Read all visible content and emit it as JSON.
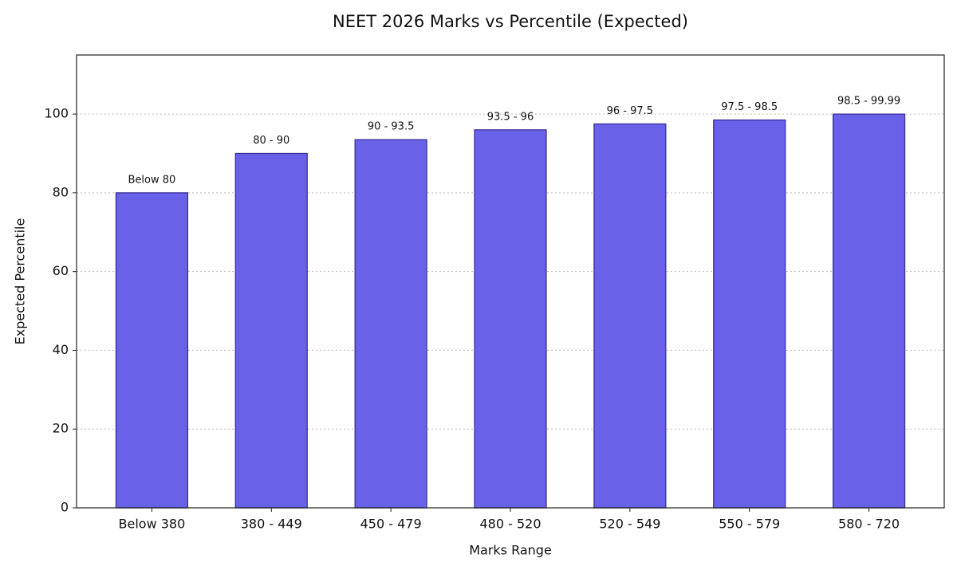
{
  "chart_data": {
    "type": "bar",
    "title": "NEET 2026 Marks vs Percentile (Expected)",
    "x_label": "Marks Range",
    "y_label": "Expected Percentile",
    "categories": [
      "Below 380",
      "380 - 449",
      "450 - 479",
      "480 - 520",
      "520 - 549",
      "550 - 579",
      "580 - 720"
    ],
    "values": [
      80,
      90,
      93.5,
      96,
      97.5,
      98.5,
      99.99
    ],
    "value_labels": [
      "Below 80",
      "80 - 90",
      "90 - 93.5",
      "93.5 - 96",
      "96 - 97.5",
      "97.5 - 98.5",
      "98.5 - 99.99"
    ],
    "color": "#6961e8",
    "edge_color": "#3b2f9e",
    "ylim": [
      0,
      115
    ],
    "yticks": [
      0,
      20,
      40,
      60,
      80,
      100
    ],
    "grid": true
  }
}
